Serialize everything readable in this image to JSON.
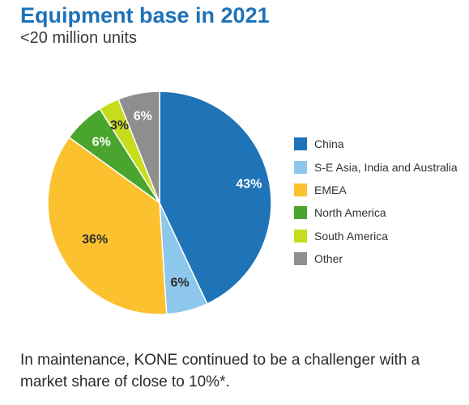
{
  "chart_data": {
    "type": "pie",
    "title": "Equipment base in 2021",
    "subtitle": "<20 million units",
    "slices": [
      {
        "label": "China",
        "value": 43,
        "display": "43%",
        "color": "#1f73b7"
      },
      {
        "label": "S-E Asia, India and Australia",
        "value": 6,
        "display": "6%",
        "color": "#8ec7ec"
      },
      {
        "label": "EMEA",
        "value": 36,
        "display": "36%",
        "color": "#fcc12e"
      },
      {
        "label": "North America",
        "value": 6,
        "display": "6%",
        "color": "#4aa52e"
      },
      {
        "label": "South America",
        "value": 3,
        "display": "3%",
        "color": "#c8dc1e"
      },
      {
        "label": "Other",
        "value": 6,
        "display": "6%",
        "color": "#8e8e8e"
      }
    ],
    "legend_position": "right"
  },
  "footnote": "In maintenance, KONE continued to be a challenger with a market share of close to 10%*."
}
